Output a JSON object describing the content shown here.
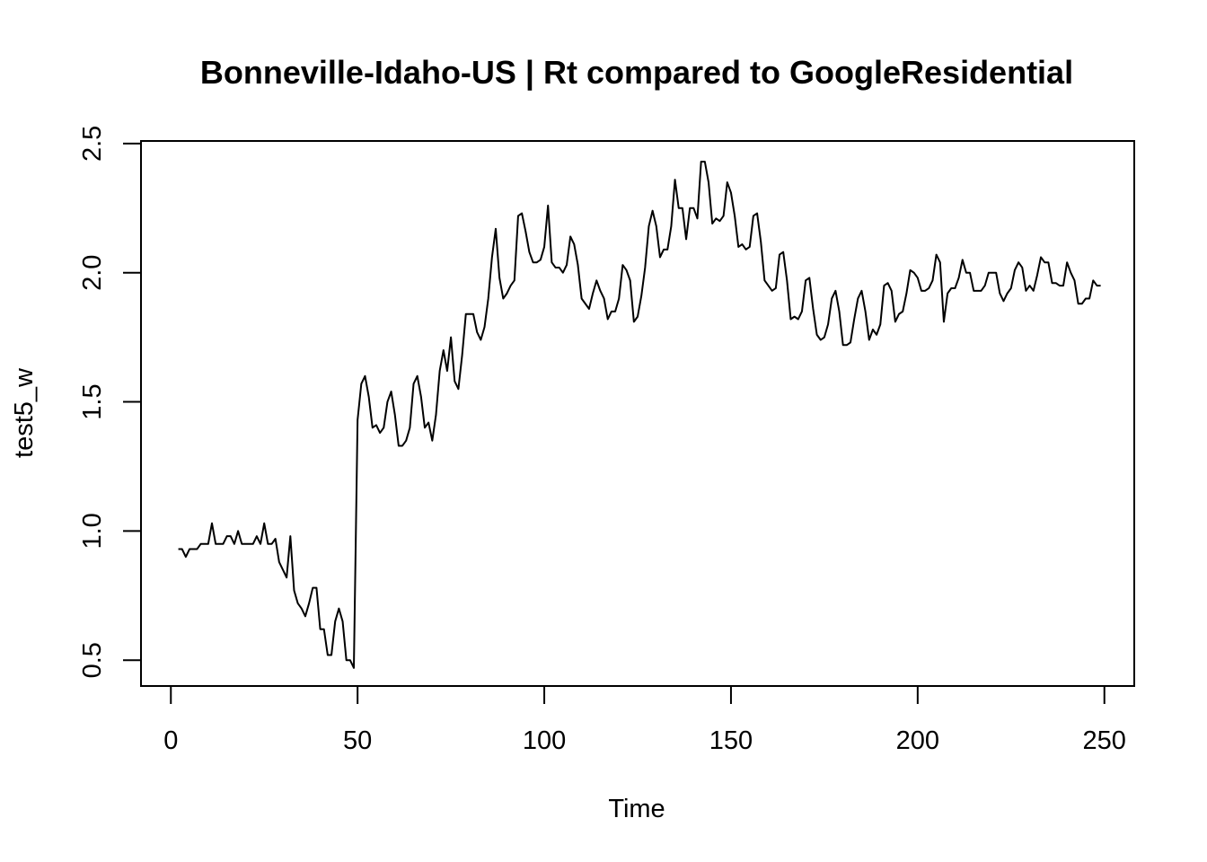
{
  "chart_data": {
    "type": "line",
    "title": "Bonneville-Idaho-US | Rt compared to GoogleResidential",
    "xlabel": "Time",
    "ylabel": "test5_w",
    "xlim": [
      -8,
      258
    ],
    "ylim": [
      0.4,
      2.51
    ],
    "x_ticks": [
      0,
      50,
      100,
      150,
      200,
      250
    ],
    "y_ticks": [
      0.5,
      1.0,
      1.5,
      2.0,
      2.5
    ],
    "x_tick_labels": [
      "0",
      "50",
      "100",
      "150",
      "200",
      "250"
    ],
    "y_tick_labels": [
      "0.5",
      "1.0",
      "1.5",
      "2.0",
      "2.5"
    ],
    "grid": false,
    "legend": "none",
    "line_color": "#000000",
    "series": [
      {
        "x_start": 2,
        "x_step": 1,
        "values": [
          0.93,
          0.93,
          0.9,
          0.93,
          0.93,
          0.93,
          0.95,
          0.95,
          0.95,
          1.03,
          0.95,
          0.95,
          0.95,
          0.98,
          0.98,
          0.95,
          1.0,
          0.95,
          0.95,
          0.95,
          0.95,
          0.98,
          0.95,
          1.03,
          0.95,
          0.95,
          0.97,
          0.88,
          0.85,
          0.82,
          0.98,
          0.77,
          0.72,
          0.7,
          0.67,
          0.72,
          0.78,
          0.78,
          0.62,
          0.62,
          0.52,
          0.52,
          0.65,
          0.7,
          0.65,
          0.5,
          0.5,
          0.47,
          1.43,
          1.57,
          1.6,
          1.52,
          1.4,
          1.41,
          1.38,
          1.4,
          1.5,
          1.54,
          1.45,
          1.33,
          1.33,
          1.35,
          1.4,
          1.57,
          1.6,
          1.52,
          1.4,
          1.42,
          1.35,
          1.45,
          1.62,
          1.7,
          1.62,
          1.75,
          1.58,
          1.55,
          1.68,
          1.84,
          1.84,
          1.84,
          1.77,
          1.74,
          1.79,
          1.9,
          2.06,
          2.17,
          1.98,
          1.9,
          1.92,
          1.95,
          1.97,
          2.22,
          2.23,
          2.16,
          2.08,
          2.04,
          2.04,
          2.05,
          2.1,
          2.26,
          2.04,
          2.02,
          2.02,
          2.0,
          2.03,
          2.14,
          2.11,
          2.03,
          1.9,
          1.88,
          1.86,
          1.92,
          1.97,
          1.93,
          1.9,
          1.82,
          1.85,
          1.85,
          1.9,
          2.03,
          2.01,
          1.97,
          1.81,
          1.83,
          1.91,
          2.02,
          2.18,
          2.24,
          2.18,
          2.06,
          2.09,
          2.09,
          2.18,
          2.36,
          2.25,
          2.25,
          2.13,
          2.25,
          2.25,
          2.21,
          2.43,
          2.43,
          2.35,
          2.19,
          2.21,
          2.2,
          2.22,
          2.35,
          2.31,
          2.22,
          2.1,
          2.11,
          2.09,
          2.1,
          2.22,
          2.23,
          2.12,
          1.97,
          1.95,
          1.93,
          1.94,
          2.07,
          2.08,
          1.97,
          1.82,
          1.83,
          1.82,
          1.85,
          1.97,
          1.98,
          1.86,
          1.76,
          1.74,
          1.75,
          1.8,
          1.9,
          1.93,
          1.85,
          1.72,
          1.72,
          1.73,
          1.82,
          1.9,
          1.93,
          1.85,
          1.74,
          1.78,
          1.76,
          1.8,
          1.95,
          1.96,
          1.93,
          1.81,
          1.84,
          1.85,
          1.92,
          2.01,
          2.0,
          1.98,
          1.93,
          1.93,
          1.94,
          1.97,
          2.07,
          2.04,
          1.81,
          1.92,
          1.94,
          1.94,
          1.98,
          2.05,
          2.0,
          2.0,
          1.93,
          1.93,
          1.93,
          1.95,
          2.0,
          2.0,
          2.0,
          1.92,
          1.89,
          1.92,
          1.94,
          2.01,
          2.04,
          2.02,
          1.93,
          1.95,
          1.93,
          1.99,
          2.06,
          2.04,
          2.04,
          1.96,
          1.96,
          1.95,
          1.95,
          2.04,
          2.0,
          1.97,
          1.88,
          1.88,
          1.9,
          1.9,
          1.97,
          1.95,
          1.95
        ]
      }
    ]
  }
}
